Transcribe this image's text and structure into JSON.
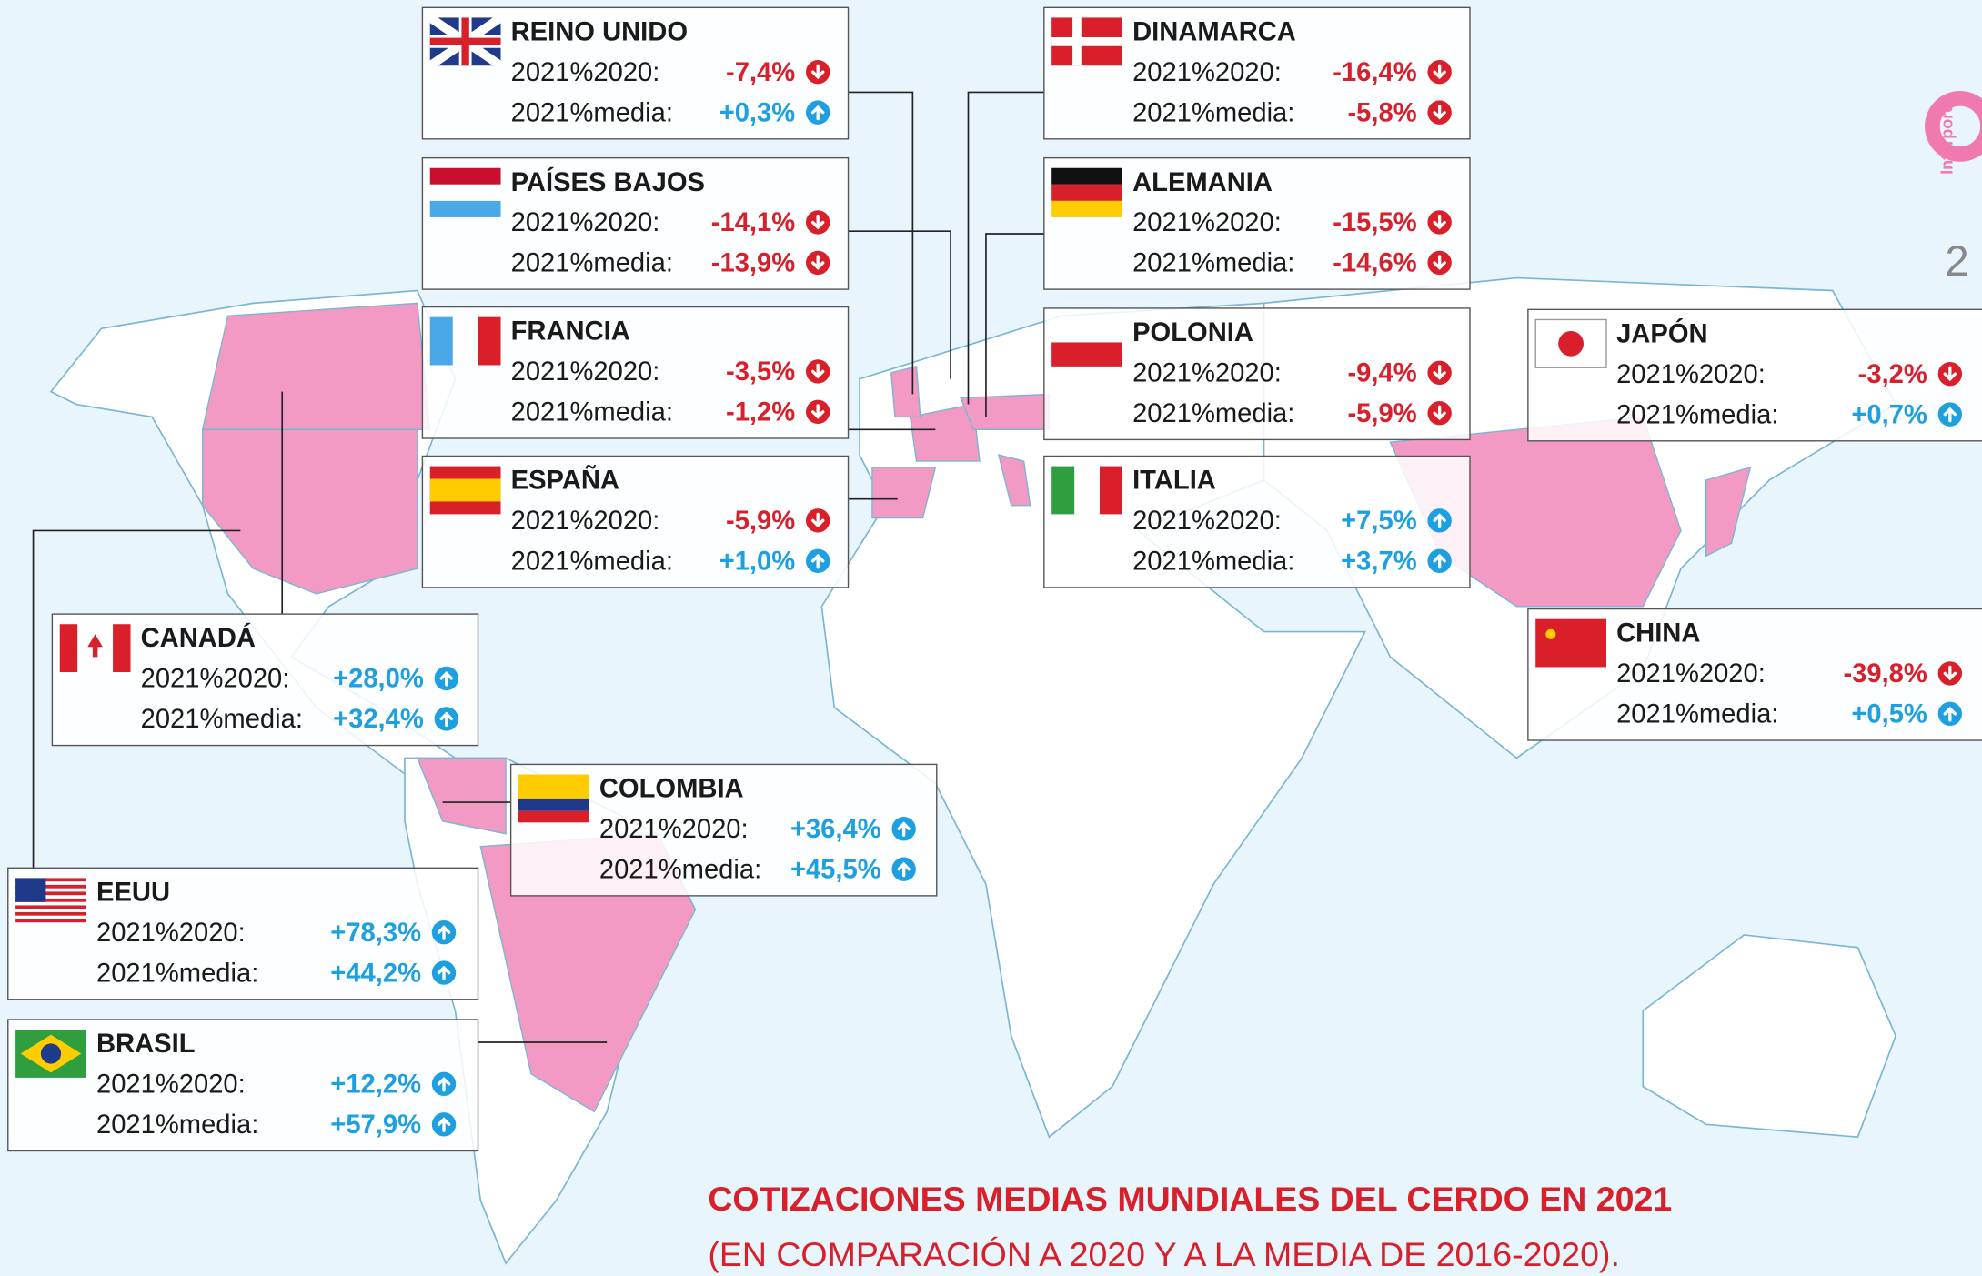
{
  "title": "COTIZACIONES MEDIAS MUNDIALES DEL CERDO EN 2021",
  "subtitle": "(EN COMPARACIÓN  A 2020 Y A LA MEDIA DE 2016-2020).",
  "brand": "Interporc",
  "page_number": "2",
  "countries": [
    {
      "name": "REINO UNIDO",
      "rows": [
        {
          "label": "2021%2020:",
          "value": "-7,4%"
        },
        {
          "label": "2021%media:",
          "value": "+0,3%"
        }
      ]
    },
    {
      "name": "DINAMARCA",
      "rows": [
        {
          "label": "2021%2020:",
          "value": "-16,4%"
        },
        {
          "label": "2021%media:",
          "value": "-5,8%"
        }
      ]
    },
    {
      "name": "PAÍSES BAJOS",
      "rows": [
        {
          "label": "2021%2020:",
          "value": "-14,1%"
        },
        {
          "label": "2021%media:",
          "value": "-13,9%"
        }
      ]
    },
    {
      "name": "ALEMANIA",
      "rows": [
        {
          "label": "2021%2020:",
          "value": "-15,5%"
        },
        {
          "label": "2021%media:",
          "value": "-14,6%"
        }
      ]
    },
    {
      "name": "FRANCIA",
      "rows": [
        {
          "label": "2021%2020:",
          "value": "-3,5%"
        },
        {
          "label": "2021%media:",
          "value": "-1,2%"
        }
      ]
    },
    {
      "name": "POLONIA",
      "rows": [
        {
          "label": "2021%2020:",
          "value": "-9,4%"
        },
        {
          "label": "2021%media:",
          "value": "-5,9%"
        }
      ]
    },
    {
      "name": "JAPÓN",
      "rows": [
        {
          "label": "2021%2020:",
          "value": "-3,2%"
        },
        {
          "label": "2021%media:",
          "value": "+0,7%"
        }
      ]
    },
    {
      "name": "ESPAÑA",
      "rows": [
        {
          "label": "2021%2020:",
          "value": "-5,9%"
        },
        {
          "label": "2021%media:",
          "value": "+1,0%"
        }
      ]
    },
    {
      "name": "ITALIA",
      "rows": [
        {
          "label": "2021%2020:",
          "value": "+7,5%"
        },
        {
          "label": "2021%media:",
          "value": "+3,7%"
        }
      ]
    },
    {
      "name": "CHINA",
      "rows": [
        {
          "label": "2021%2020:",
          "value": "-39,8%"
        },
        {
          "label": "2021%media:",
          "value": "+0,5%"
        }
      ]
    },
    {
      "name": "CANADÁ",
      "rows": [
        {
          "label": "2021%2020:",
          "value": "+28,0%"
        },
        {
          "label": "2021%media:",
          "value": "+32,4%"
        }
      ]
    },
    {
      "name": "COLOMBIA",
      "rows": [
        {
          "label": "2021%2020:",
          "value": "+36,4%"
        },
        {
          "label": "2021%media:",
          "value": "+45,5%"
        }
      ]
    },
    {
      "name": "EEUU",
      "rows": [
        {
          "label": "2021%2020:",
          "value": "+78,3%"
        },
        {
          "label": "2021%media:",
          "value": "+44,2%"
        }
      ]
    },
    {
      "name": "BRASIL",
      "rows": [
        {
          "label": "2021%2020:",
          "value": "+12,2%"
        },
        {
          "label": "2021%media:",
          "value": "+57,9%"
        }
      ]
    }
  ]
}
